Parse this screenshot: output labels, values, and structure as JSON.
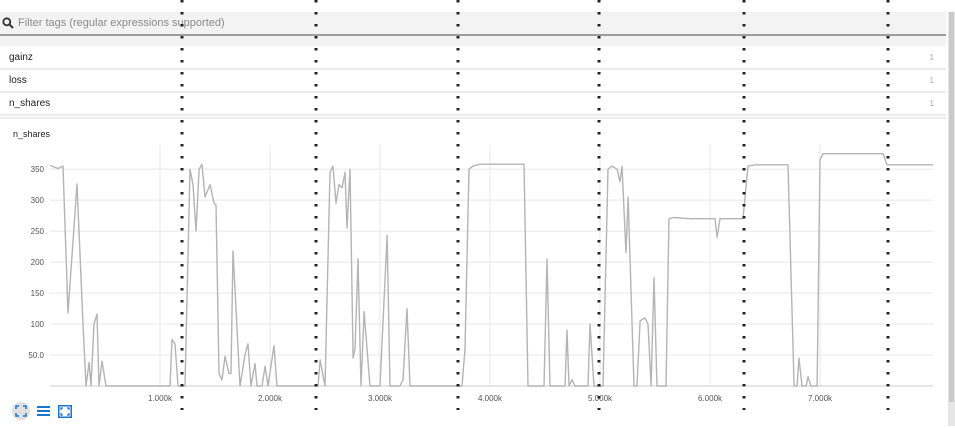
{
  "search": {
    "placeholder": "Filter tags (regular expressions supported)",
    "value": ""
  },
  "tags": [
    {
      "name": "gainz",
      "count": "1"
    },
    {
      "name": "loss",
      "count": "1"
    },
    {
      "name": "n_shares",
      "count": "1"
    }
  ],
  "card": {
    "title": "n_shares"
  },
  "colors": {
    "line": "#b4b4b4",
    "grid": "#e8e8e8",
    "accent": "#1976d2"
  },
  "toolbar": {
    "icons": [
      "fit-domain-icon",
      "toggle-log-scale-icon",
      "expand-icon"
    ]
  },
  "chart_data": {
    "type": "line",
    "title": "n_shares",
    "xlim": [
      0,
      8027
    ],
    "ylim": [
      0,
      389
    ],
    "grid": true,
    "x_ticks": [
      1000,
      2000,
      3000,
      4000,
      5000,
      6000,
      7000
    ],
    "x_tick_labels": [
      "1.000k",
      "2.000k",
      "3.000k",
      "4.000k",
      "5.000k",
      "6.000k",
      "7.000k"
    ],
    "y_ticks": [
      50,
      100,
      150,
      200,
      250,
      300,
      350
    ],
    "y_tick_labels": [
      "50.0",
      "100",
      "150",
      "200",
      "250",
      "300",
      "350"
    ],
    "series": [
      {
        "x": [
          0,
          73,
          118,
          164,
          245,
          300,
          327,
          355,
          373,
          400,
          427,
          445,
          473,
          509,
          1091,
          1109,
          1136,
          1164,
          1227,
          1273,
          1300,
          1327,
          1355,
          1382,
          1409,
          1455,
          1491,
          1509,
          1536,
          1564,
          1591,
          1627,
          1645,
          1664,
          1727,
          1773,
          1800,
          1827,
          1864,
          1882,
          1927,
          1955,
          1982,
          2036,
          2064,
          2436,
          2455,
          2500,
          2545,
          2573,
          2600,
          2627,
          2655,
          2682,
          2700,
          2727,
          2755,
          2773,
          2800,
          2827,
          2855,
          2909,
          3000,
          3064,
          3091,
          3182,
          3209,
          3245,
          3273,
          3745,
          3773,
          3809,
          3845,
          3909,
          4309,
          4345,
          4491,
          4518,
          4545,
          4682,
          4700,
          4718,
          4745,
          4773,
          4891,
          4909,
          4945,
          5027,
          5073,
          5109,
          5155,
          5182,
          5200,
          5236,
          5255,
          5309,
          5336,
          5364,
          5409,
          5436,
          5464,
          5491,
          5518,
          5600,
          5627,
          5664,
          5818,
          6045,
          6064,
          6091,
          6300,
          6345,
          6409,
          6709,
          6764,
          6791,
          6809,
          6836,
          6873,
          6891,
          6918,
          6973,
          7000,
          7027,
          7573,
          7609,
          8027
        ],
        "y": [
          356,
          351,
          355,
          118,
          326,
          100,
          0,
          38,
          0,
          100,
          116,
          0,
          40,
          0,
          0,
          75,
          68,
          0,
          0,
          350,
          325,
          250,
          350,
          358,
          305,
          325,
          295,
          292,
          20,
          10,
          48,
          20,
          20,
          218,
          0,
          50,
          68,
          0,
          36,
          0,
          0,
          32,
          0,
          65,
          0,
          0,
          42,
          0,
          345,
          355,
          295,
          325,
          320,
          345,
          255,
          350,
          45,
          60,
          205,
          0,
          120,
          0,
          0,
          243,
          0,
          0,
          10,
          125,
          0,
          0,
          60,
          350,
          355,
          358,
          358,
          0,
          0,
          205,
          0,
          0,
          90,
          0,
          10,
          0,
          0,
          100,
          0,
          0,
          350,
          355,
          350,
          330,
          355,
          215,
          305,
          0,
          0,
          105,
          110,
          100,
          0,
          175,
          0,
          0,
          270,
          272,
          270,
          270,
          240,
          270,
          270,
          355,
          357,
          357,
          0,
          0,
          45,
          0,
          0,
          15,
          0,
          0,
          365,
          375,
          375,
          357,
          357
        ]
      }
    ]
  }
}
